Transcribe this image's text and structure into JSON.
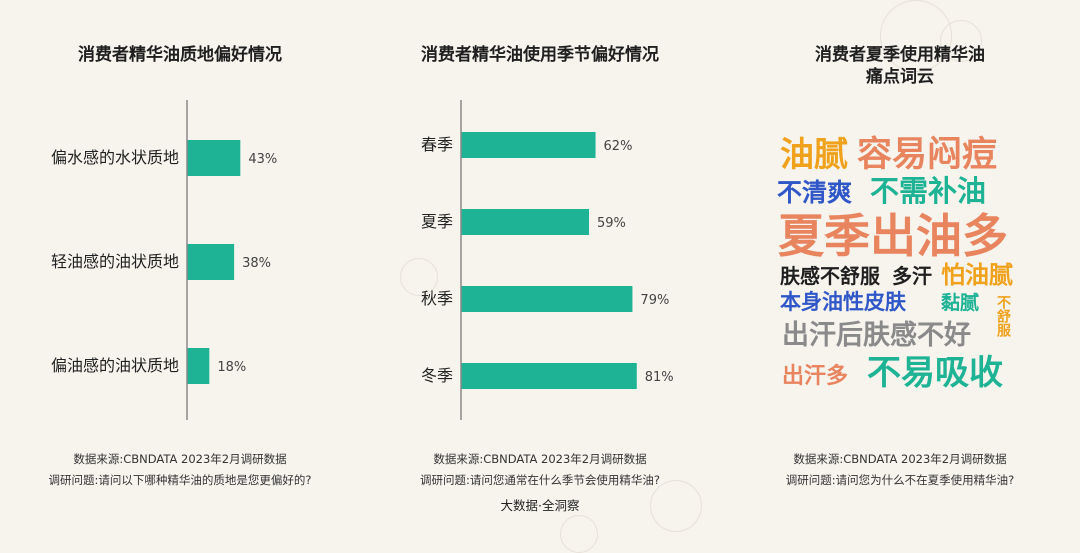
{
  "colors": {
    "bar": "#1db394",
    "axis": "#8a8a8a",
    "background": "#f7f4ee"
  },
  "panels": {
    "texture": {
      "title": "消费者精华油质地偏好情况",
      "source": "数据来源:CBNDATA 2023年2月调研数据",
      "question": "调研问题:请问以下哪种精华油的质地是您更偏好的?"
    },
    "season": {
      "title": "消费者精华油使用季节偏好情况",
      "source": "数据来源:CBNDATA 2023年2月调研数据",
      "question": "调研问题:请问您通常在什么季节会使用精华油?"
    },
    "cloud": {
      "title_line1": "消费者夏季使用精华油",
      "title_line2": "痛点词云",
      "source": "数据来源:CBNDATA 2023年2月调研数据",
      "question": "调研问题:请问您为什么不在夏季使用精华油?",
      "words": [
        {
          "text": "油腻",
          "color": "#f0a21c"
        },
        {
          "text": "容易闷痘",
          "color": "#e8845e"
        },
        {
          "text": "不清爽",
          "color": "#2f57c8"
        },
        {
          "text": "不需补油",
          "color": "#1db394"
        },
        {
          "text": "夏季出油多",
          "color": "#e8845e"
        },
        {
          "text": "肤感不舒服",
          "color": "#1f1f1f"
        },
        {
          "text": "多汗",
          "color": "#1f1f1f"
        },
        {
          "text": "怕油腻",
          "color": "#f0a21c"
        },
        {
          "text": "本身油性皮肤",
          "color": "#2f57c8"
        },
        {
          "text": "黏腻",
          "color": "#1db394"
        },
        {
          "text": "不舒服",
          "color": "#f0a21c"
        },
        {
          "text": "出汗后肤感不好",
          "color": "#8a8a8a"
        },
        {
          "text": "出汗多",
          "color": "#e8845e"
        },
        {
          "text": "不易吸收",
          "color": "#1db394"
        }
      ]
    }
  },
  "footer": {
    "brand": "大数据·全洞察"
  },
  "chart_data": [
    {
      "type": "bar",
      "orientation": "horizontal",
      "title": "消费者精华油质地偏好情况",
      "categories": [
        "偏水感的水状质地",
        "轻油感的油状质地",
        "偏油感的油状质地"
      ],
      "values": [
        43,
        38,
        18
      ],
      "value_labels": [
        "43%",
        "38%",
        "18%"
      ],
      "unit": "%",
      "xlim": [
        0,
        100
      ]
    },
    {
      "type": "bar",
      "orientation": "horizontal",
      "title": "消费者精华油使用季节偏好情况",
      "categories": [
        "春季",
        "夏季",
        "秋季",
        "冬季"
      ],
      "values": [
        62,
        59,
        79,
        81
      ],
      "value_labels": [
        "62%",
        "59%",
        "79%",
        "81%"
      ],
      "unit": "%",
      "xlim": [
        0,
        100
      ]
    }
  ]
}
